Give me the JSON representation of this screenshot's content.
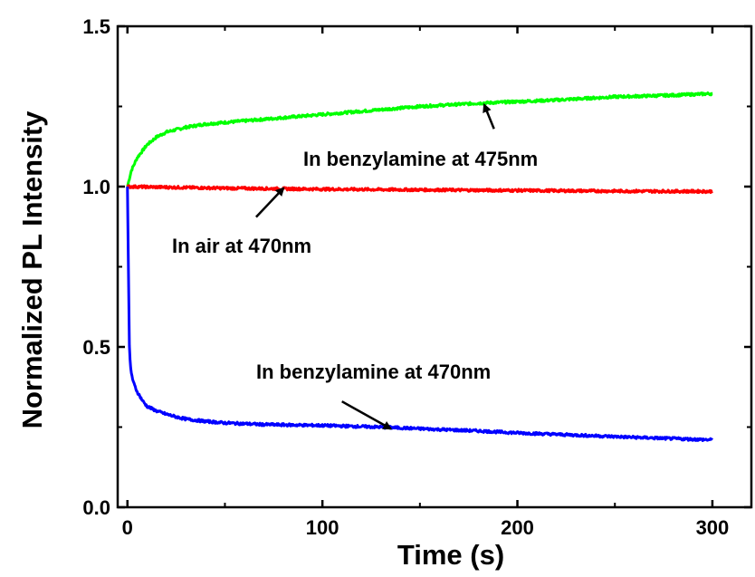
{
  "chart_data": {
    "type": "line",
    "title": "",
    "xlabel": "Time (s)",
    "ylabel": "Normalized PL Intensity",
    "xlim": [
      -5,
      320
    ],
    "ylim": [
      0.0,
      1.5
    ],
    "x_ticks": [
      0,
      100,
      200,
      300
    ],
    "x_tick_labels": [
      "0",
      "100",
      "200",
      "300"
    ],
    "y_ticks": [
      0.0,
      0.5,
      1.0,
      1.5
    ],
    "y_tick_labels": [
      "0.0",
      "0.5",
      "1.0",
      "1.5"
    ],
    "grid": false,
    "legend": "none",
    "series": [
      {
        "color": "#00ff00",
        "x": [
          0,
          2,
          5,
          10,
          15,
          20,
          30,
          40,
          50,
          60,
          80,
          100,
          120,
          150,
          180,
          200,
          220,
          250,
          280,
          300
        ],
        "y": [
          1.0,
          1.05,
          1.09,
          1.13,
          1.155,
          1.17,
          1.185,
          1.195,
          1.2,
          1.205,
          1.215,
          1.225,
          1.235,
          1.25,
          1.26,
          1.265,
          1.27,
          1.28,
          1.285,
          1.29
        ]
      },
      {
        "color": "#ff0000",
        "x": [
          0,
          10,
          30,
          50,
          100,
          150,
          200,
          250,
          300
        ],
        "y": [
          1.0,
          0.999,
          0.997,
          0.995,
          0.992,
          0.99,
          0.988,
          0.986,
          0.985
        ]
      },
      {
        "color": "#0000ff",
        "x": [
          0,
          0.5,
          1,
          1.5,
          2,
          3,
          5,
          8,
          10,
          15,
          20,
          25,
          30,
          40,
          50,
          70,
          100,
          130,
          150,
          180,
          200,
          230,
          260,
          300
        ],
        "y": [
          1.0,
          0.75,
          0.5,
          0.44,
          0.42,
          0.39,
          0.36,
          0.33,
          0.315,
          0.3,
          0.29,
          0.282,
          0.275,
          0.268,
          0.263,
          0.258,
          0.255,
          0.25,
          0.245,
          0.238,
          0.232,
          0.225,
          0.218,
          0.21
        ]
      }
    ],
    "annotations": [
      {
        "text": "In  benzylamine at 475nm",
        "arrow_to": [
          183,
          1.255
        ],
        "arrow_from": [
          188,
          1.18
        ]
      },
      {
        "text": "In air at 470nm",
        "arrow_to": [
          80,
          0.995
        ],
        "arrow_from": [
          66,
          0.905
        ]
      },
      {
        "text": "In benzylamine at 470nm",
        "arrow_to": [
          135,
          0.245
        ],
        "arrow_from": [
          110,
          0.33
        ]
      }
    ]
  }
}
